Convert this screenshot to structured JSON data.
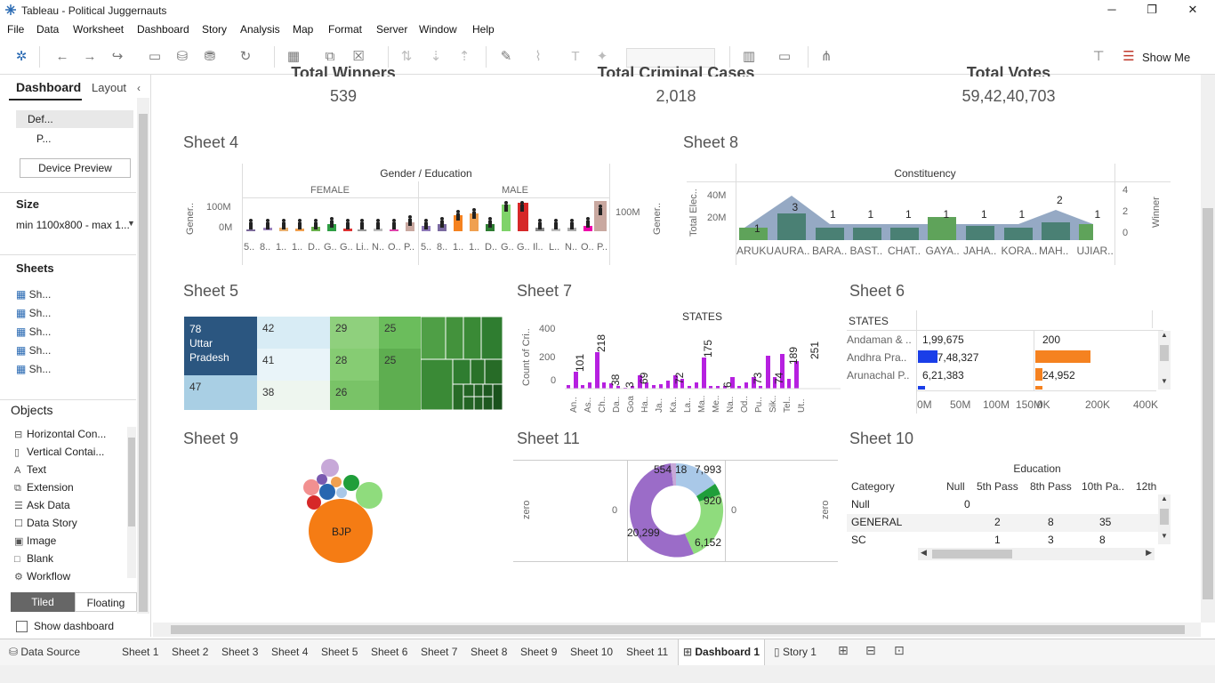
{
  "window": {
    "title": "Tableau - Political Juggernauts",
    "min": "─",
    "restore": "❐",
    "close": "✕"
  },
  "menu": [
    "File",
    "Data",
    "Worksheet",
    "Dashboard",
    "Story",
    "Analysis",
    "Map",
    "Format",
    "Server",
    "Window",
    "Help"
  ],
  "toolbar": {
    "show_me": "Show Me"
  },
  "leftpane": {
    "tab_dashboard": "Dashboard",
    "tab_layout": "Layout",
    "device_default": "Def...",
    "device_phone": "P...",
    "device_preview": "Device Preview",
    "size_label": "Size",
    "size_value": "min 1100x800 - max 1...",
    "sheets_label": "Sheets",
    "sheets": [
      "Sh...",
      "Sh...",
      "Sh...",
      "Sh...",
      "Sh..."
    ],
    "objects_label": "Objects",
    "objects": [
      {
        "icon": "horizontal-container-icon",
        "glyph": "⊟",
        "label": "Horizontal Con..."
      },
      {
        "icon": "vertical-container-icon",
        "glyph": "▯",
        "label": "Vertical Contai..."
      },
      {
        "icon": "text-icon",
        "glyph": "A",
        "label": "Text"
      },
      {
        "icon": "extension-icon",
        "glyph": "⧉",
        "label": "Extension"
      },
      {
        "icon": "ask-data-icon",
        "glyph": "☰",
        "label": "Ask Data"
      },
      {
        "icon": "data-story-icon",
        "glyph": "☐",
        "label": "Data Story"
      },
      {
        "icon": "image-icon",
        "glyph": "▣",
        "label": "Image"
      },
      {
        "icon": "blank-icon",
        "glyph": "□",
        "label": "Blank"
      },
      {
        "icon": "workflow-icon",
        "glyph": "⚙",
        "label": "Workflow"
      }
    ],
    "tiled": "Tiled",
    "floating": "Floating",
    "show_dashboard_title": "Show dashboard"
  },
  "kpis": [
    {
      "label": "Total Winners",
      "value": "539"
    },
    {
      "label": "Total Criminal Cases",
      "value": "2,018"
    },
    {
      "label": "Total Votes",
      "value": "59,42,40,703"
    }
  ],
  "sheet4": {
    "title": "Sheet 4",
    "header": "Gender / Education",
    "female": "FEMALE",
    "male": "MALE",
    "yaxis": "Gener..",
    "yaxis_right": "Gener..",
    "tick_100m": "100M",
    "tick_0m": "0M",
    "right_tick": "100M",
    "xlabels_f": [
      "5..",
      "8..",
      "1..",
      "1..",
      "D..",
      "G..",
      "G..",
      "Li..",
      "N..",
      "O..",
      "P.."
    ],
    "xlabels_m": [
      "5..",
      "8..",
      "1..",
      "1..",
      "D..",
      "G..",
      "G..",
      "Il..",
      "L..",
      "N..",
      "O..",
      "P.."
    ]
  },
  "sheet8": {
    "title": "Sheet 8",
    "header": "Constituency",
    "yaxis": "Total Elec..",
    "yaxis_right": "Winner",
    "ticks": [
      "40M",
      "20M"
    ],
    "right_ticks": [
      "4",
      "2",
      "0"
    ],
    "categories": [
      "ARUKU",
      "AURA..",
      "BARA..",
      "BAST..",
      "CHAT..",
      "GAYA..",
      "JAHA..",
      "KORA..",
      "MAH..",
      "UJIAR.."
    ],
    "labels": [
      "1",
      "3",
      "1",
      "1",
      "1",
      "1",
      "1",
      "1",
      "2",
      "1"
    ]
  },
  "sheet5": {
    "title": "Sheet 5",
    "cells": [
      {
        "v": "78\nUttar\nPradesh"
      },
      {
        "v": "47"
      },
      {
        "v": "42"
      },
      {
        "v": "41"
      },
      {
        "v": "38"
      },
      {
        "v": "29"
      },
      {
        "v": "28"
      },
      {
        "v": "26"
      },
      {
        "v": "25"
      },
      {
        "v": "25"
      }
    ]
  },
  "sheet7": {
    "title": "Sheet 7",
    "header": "STATES",
    "yaxis": "Count of Cri..",
    "ticks": [
      "400",
      "200",
      "0"
    ],
    "values": [
      {
        "label": "101"
      },
      {
        "label": "218"
      },
      {
        "label": "38"
      },
      {
        "label": "3"
      },
      {
        "label": "69"
      },
      {
        "label": "72"
      },
      {
        "label": "175"
      },
      {
        "label": "6"
      },
      {
        "label": "73"
      },
      {
        "label": "74"
      },
      {
        "label": "189"
      },
      {
        "label": "251"
      }
    ],
    "xlabels": [
      "An..",
      "As..",
      "Ch..",
      "Da..",
      "Goa",
      "Ha..",
      "Ja..",
      "Ka..",
      "La..",
      "Ma..",
      "Me..",
      "Na..",
      "Od..",
      "Pu..",
      "Sik..",
      "Tel..",
      "Ut.."
    ]
  },
  "sheet6": {
    "title": "Sheet 6",
    "header": "STATES",
    "rows": [
      {
        "state": "Andaman & ..",
        "a": "1,99,675",
        "b": "200"
      },
      {
        "state": "Andhra Pra..",
        "a": "3,07,48,327",
        "b": "2,20,376"
      },
      {
        "state": "Arunachal P..",
        "a": "6,21,383",
        "b": "24,952"
      }
    ],
    "axis_a": [
      "0M",
      "50M",
      "100M",
      "150M"
    ],
    "axis_b": [
      "0K",
      "200K",
      "400K"
    ]
  },
  "sheet9": {
    "title": "Sheet 9",
    "bjp": "BJP"
  },
  "sheet11": {
    "title": "Sheet 11",
    "zero_left": "zero",
    "zero_right": "zero",
    "left_val": "0",
    "right_val": "0",
    "labels": [
      "554",
      "18",
      "7,993",
      "920",
      "6,152",
      "20,299"
    ]
  },
  "sheet10": {
    "title": "Sheet 10",
    "header": "Education",
    "columns": [
      "Category",
      "Null",
      "5th Pass",
      "8th Pass",
      "10th Pa..",
      "12th"
    ],
    "rows": [
      [
        "Null",
        "0",
        "",
        "",
        "",
        ""
      ],
      [
        "GENERAL",
        "",
        "2",
        "8",
        "35",
        ""
      ],
      [
        "SC",
        "",
        "1",
        "3",
        "8",
        ""
      ]
    ]
  },
  "tabs": [
    "Data Source",
    "Sheet 1",
    "Sheet 2",
    "Sheet 3",
    "Sheet 4",
    "Sheet 5",
    "Sheet 6",
    "Sheet 7",
    "Sheet 8",
    "Sheet 9",
    "Sheet 10",
    "Sheet 11",
    "Dashboard 1",
    "Story 1"
  ]
}
